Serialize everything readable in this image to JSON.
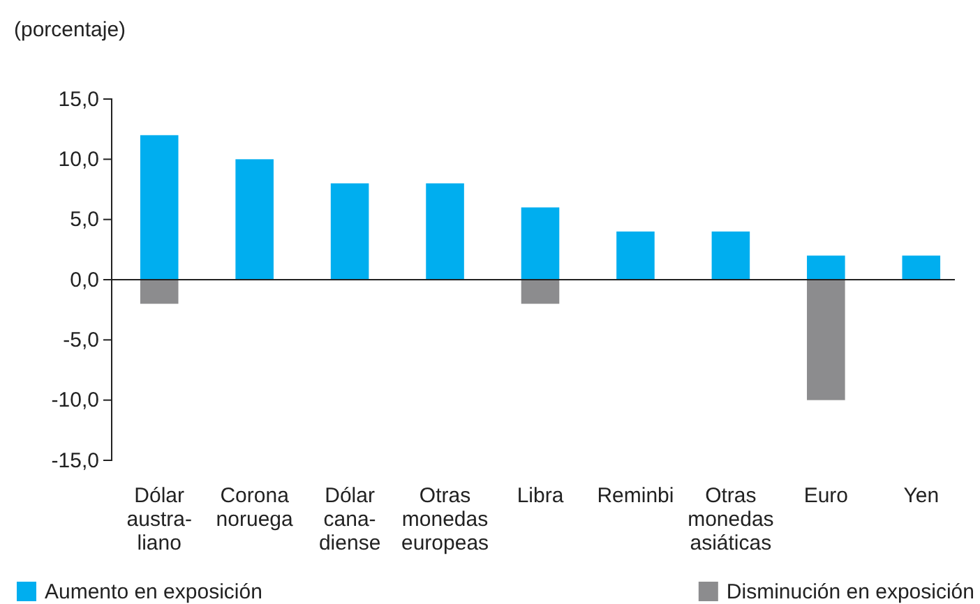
{
  "chart_data": {
    "type": "bar",
    "ylabel": "(porcentaje)",
    "categories": [
      "Dólar\naustra-\nliano",
      "Corona\nnoruega",
      "Dólar\ncana-\ndiense",
      "Otras\nmonedas\neuropeas",
      "Libra",
      "Reminbi",
      "Otras\nmonedas\nasiáticas",
      "Euro",
      "Yen"
    ],
    "series": [
      {
        "name": "Aumento en exposición",
        "color": "#00aeef",
        "values": [
          12,
          10,
          8,
          8,
          6,
          4,
          4,
          2,
          2
        ]
      },
      {
        "name": "Disminución en exposición",
        "color": "#8c8c8e",
        "values": [
          -2,
          null,
          null,
          null,
          -2,
          null,
          null,
          -10,
          null
        ]
      }
    ],
    "stacked": true,
    "ylim": [
      -15,
      15
    ],
    "yticks": [
      {
        "value": -15,
        "label": "-15,0"
      },
      {
        "value": -10,
        "label": "-10,0"
      },
      {
        "value": -5,
        "label": "-5,0"
      },
      {
        "value": 0,
        "label": "0,0"
      },
      {
        "value": 5,
        "label": "5,0"
      },
      {
        "value": 10,
        "label": "10,0"
      },
      {
        "value": 15,
        "label": "15,0"
      }
    ],
    "legend": "bottom"
  }
}
